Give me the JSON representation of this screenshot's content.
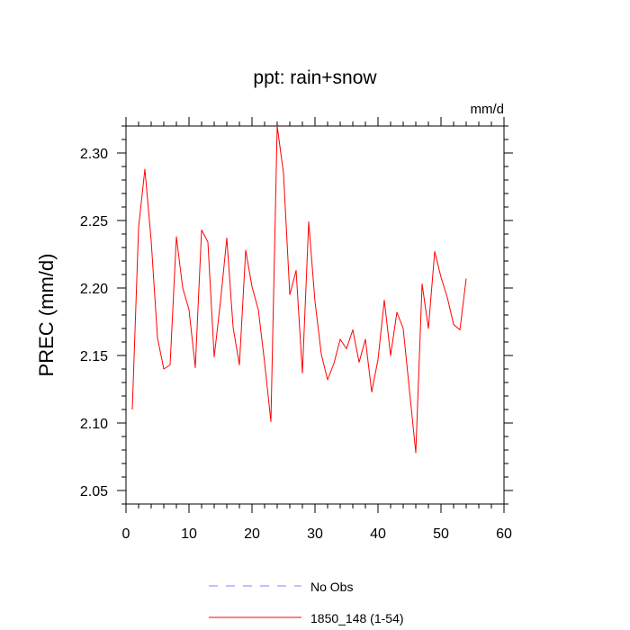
{
  "chart_data": {
    "type": "line",
    "title": "ppt: rain+snow",
    "units": "mm/d",
    "ylabel": "PREC  (mm/d)",
    "xlabel": "",
    "xlim": [
      0,
      60
    ],
    "ylim": [
      2.04,
      2.32
    ],
    "xticks": [
      0,
      10,
      20,
      30,
      40,
      50,
      60
    ],
    "yticks": [
      2.05,
      2.1,
      2.15,
      2.2,
      2.25,
      2.3
    ],
    "ytick_labels": [
      "2.05",
      "2.10",
      "2.15",
      "2.20",
      "2.25",
      "2.30"
    ],
    "grid": false,
    "legend_position": "bottom-center",
    "legend": [
      {
        "label": "No Obs",
        "color": "#8080ff",
        "style": "dashed"
      },
      {
        "label": "1850_148 (1-54)",
        "color": "#ff0000",
        "style": "solid"
      }
    ],
    "series": [
      {
        "name": "1850_148 (1-54)",
        "color": "#ff0000",
        "x": [
          1,
          2,
          3,
          4,
          5,
          6,
          7,
          8,
          9,
          10,
          11,
          12,
          13,
          14,
          15,
          16,
          17,
          18,
          19,
          20,
          21,
          22,
          23,
          24,
          25,
          26,
          27,
          28,
          29,
          30,
          31,
          32,
          33,
          34,
          35,
          36,
          37,
          38,
          39,
          40,
          41,
          42,
          43,
          44,
          45,
          46,
          47,
          48,
          49,
          50,
          51,
          52,
          53,
          54
        ],
        "y": [
          2.11,
          2.245,
          2.288,
          2.235,
          2.163,
          2.14,
          2.143,
          2.238,
          2.2,
          2.184,
          2.141,
          2.243,
          2.234,
          2.149,
          2.19,
          2.237,
          2.171,
          2.143,
          2.228,
          2.201,
          2.184,
          2.145,
          2.101,
          2.32,
          2.285,
          2.195,
          2.213,
          2.137,
          2.249,
          2.19,
          2.151,
          2.132,
          2.144,
          2.162,
          2.155,
          2.169,
          2.145,
          2.162,
          2.123,
          2.147,
          2.191,
          2.15,
          2.182,
          2.17,
          2.124,
          2.078,
          2.203,
          2.17,
          2.227,
          2.208,
          2.193,
          2.173,
          2.169,
          2.207
        ]
      }
    ]
  }
}
